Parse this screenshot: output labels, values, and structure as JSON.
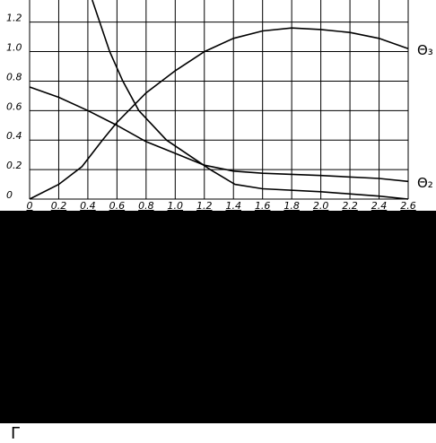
{
  "chart_data": {
    "type": "line",
    "xlim": [
      0,
      2.6
    ],
    "ylim": [
      0,
      1.35
    ],
    "xticks": [
      0,
      0.2,
      0.4,
      0.6,
      0.8,
      {
        "value": 1,
        "label": "1.0"
      },
      1.2,
      1.4,
      1.6,
      1.8,
      {
        "value": 2,
        "label": "2.0"
      },
      2.2,
      2.4,
      2.6
    ],
    "yticks": [
      0,
      0.2,
      0.4,
      0.6,
      0.8,
      {
        "value": 1,
        "label": "1.0"
      },
      1.2
    ],
    "grid": true,
    "series": [
      {
        "name": "Θ₃",
        "color": "#000000",
        "x": [
          0,
          0.2,
          0.36,
          0.5,
          0.6,
          0.8,
          1.0,
          1.2,
          1.4,
          1.6,
          1.8,
          2.0,
          2.2,
          2.4,
          2.6
        ],
        "values": [
          0,
          0.1,
          0.22,
          0.4,
          0.52,
          0.72,
          0.87,
          1.0,
          1.09,
          1.14,
          1.16,
          1.15,
          1.13,
          1.09,
          1.02
        ]
      },
      {
        "color": "#000000",
        "x": [
          0.43,
          0.55,
          0.64,
          0.75,
          0.94,
          1.24,
          1.41,
          1.6,
          2.0,
          2.4,
          2.6
        ],
        "values": [
          1.35,
          1.0,
          0.8,
          0.6,
          0.4,
          0.2,
          0.1,
          0.07,
          0.05,
          0.02,
          0
        ]
      },
      {
        "name": "Θ₂",
        "color": "#000000",
        "x": [
          0,
          0.2,
          0.4,
          0.6,
          0.8,
          1.0,
          1.2,
          1.4,
          1.6,
          2.0,
          2.4,
          2.6
        ],
        "values": [
          0.76,
          0.69,
          0.6,
          0.5,
          0.39,
          0.31,
          0.23,
          0.19,
          0.175,
          0.16,
          0.14,
          0.12
        ]
      }
    ]
  },
  "corner_text": "Γ"
}
